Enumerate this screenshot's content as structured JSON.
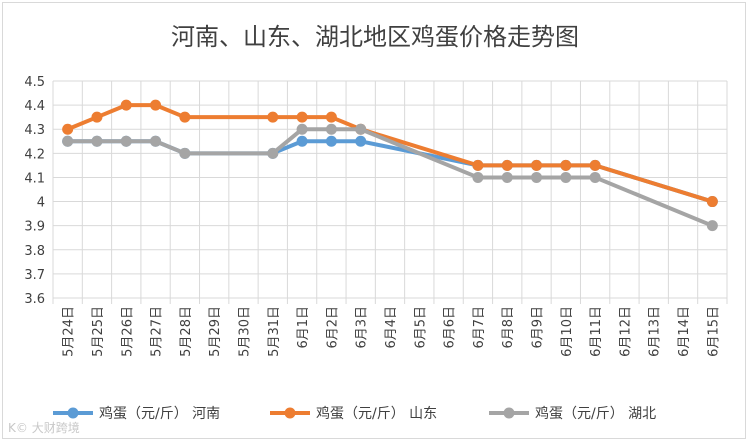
{
  "watermark": {
    "logo_text": "K©",
    "text": "大财跨境"
  },
  "chart_data": {
    "type": "line",
    "title": "河南、山东、湖北地区鸡蛋价格走势图",
    "xlabel": "",
    "ylabel": "",
    "ylim": [
      3.6,
      4.5
    ],
    "ytick_step": 0.1,
    "y_tick_labels": [
      "3.6",
      "3.7",
      "3.8",
      "3.9",
      "4",
      "4.1",
      "4.2",
      "4.3",
      "4.4",
      "4.5"
    ],
    "grid": true,
    "legend_position": "bottom",
    "categories": [
      "5月24日",
      "5月25日",
      "5月26日",
      "5月27日",
      "5月28日",
      "5月29日",
      "5月30日",
      "5月31日",
      "6月1日",
      "6月2日",
      "6月3日",
      "6月4日",
      "6月5日",
      "6月6日",
      "6月7日",
      "6月8日",
      "6月9日",
      "6月10日",
      "6月11日",
      "6月12日",
      "6月13日",
      "6月14日",
      "6月15日"
    ],
    "series": [
      {
        "name": "鸡蛋（元/斤） 河南",
        "color": "#5b9bd5",
        "values": [
          4.25,
          4.25,
          4.25,
          4.25,
          4.2,
          null,
          null,
          4.2,
          4.25,
          4.25,
          4.25,
          null,
          null,
          null,
          4.15,
          4.15,
          4.15,
          4.15,
          4.15,
          null,
          null,
          null,
          4.0
        ]
      },
      {
        "name": "鸡蛋（元/斤） 山东",
        "color": "#ed7d31",
        "values": [
          4.3,
          4.35,
          4.4,
          4.4,
          4.35,
          null,
          null,
          4.35,
          4.35,
          4.35,
          4.3,
          null,
          null,
          null,
          4.15,
          4.15,
          4.15,
          4.15,
          4.15,
          null,
          null,
          null,
          4.0
        ]
      },
      {
        "name": "鸡蛋（元/斤） 湖北",
        "color": "#a5a5a5",
        "values": [
          4.25,
          4.25,
          4.25,
          4.25,
          4.2,
          null,
          null,
          4.2,
          4.3,
          4.3,
          4.3,
          null,
          null,
          null,
          4.1,
          4.1,
          4.1,
          4.1,
          4.1,
          null,
          null,
          null,
          3.9
        ]
      }
    ]
  }
}
